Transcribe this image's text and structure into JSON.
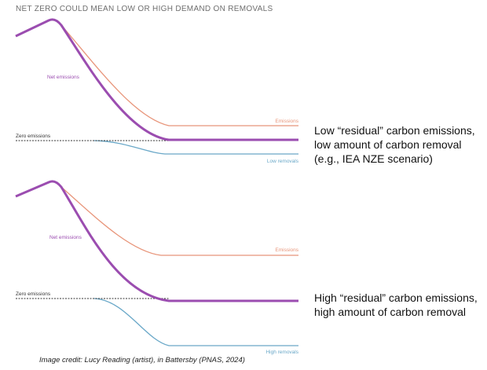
{
  "title": "NET ZERO COULD MEAN LOW OR HIGH DEMAND ON REMOVALS",
  "colors": {
    "net": "#9b4db0",
    "emissions": "#e8957a",
    "removals": "#6aa8c8",
    "zero": "#333333"
  },
  "panels": [
    {
      "zero_label": "Zero emissions",
      "net_label": "Net emissions",
      "emissions_label": "Emissions",
      "removals_label": "Low removals",
      "description": [
        "Low “residual” carbon emissions,",
        "low amount of carbon removal",
        "(e.g., IEA NZE scenario)"
      ]
    },
    {
      "zero_label": "Zero emissions",
      "net_label": "Net emissions",
      "emissions_label": "Emissions",
      "removals_label": "High removals",
      "description": [
        "High “residual” carbon emissions,",
        "high amount of carbon removal"
      ]
    }
  ],
  "credit": "Image credit: Lucy Reading (artist), in Battersby (PNAS, 2024)"
}
